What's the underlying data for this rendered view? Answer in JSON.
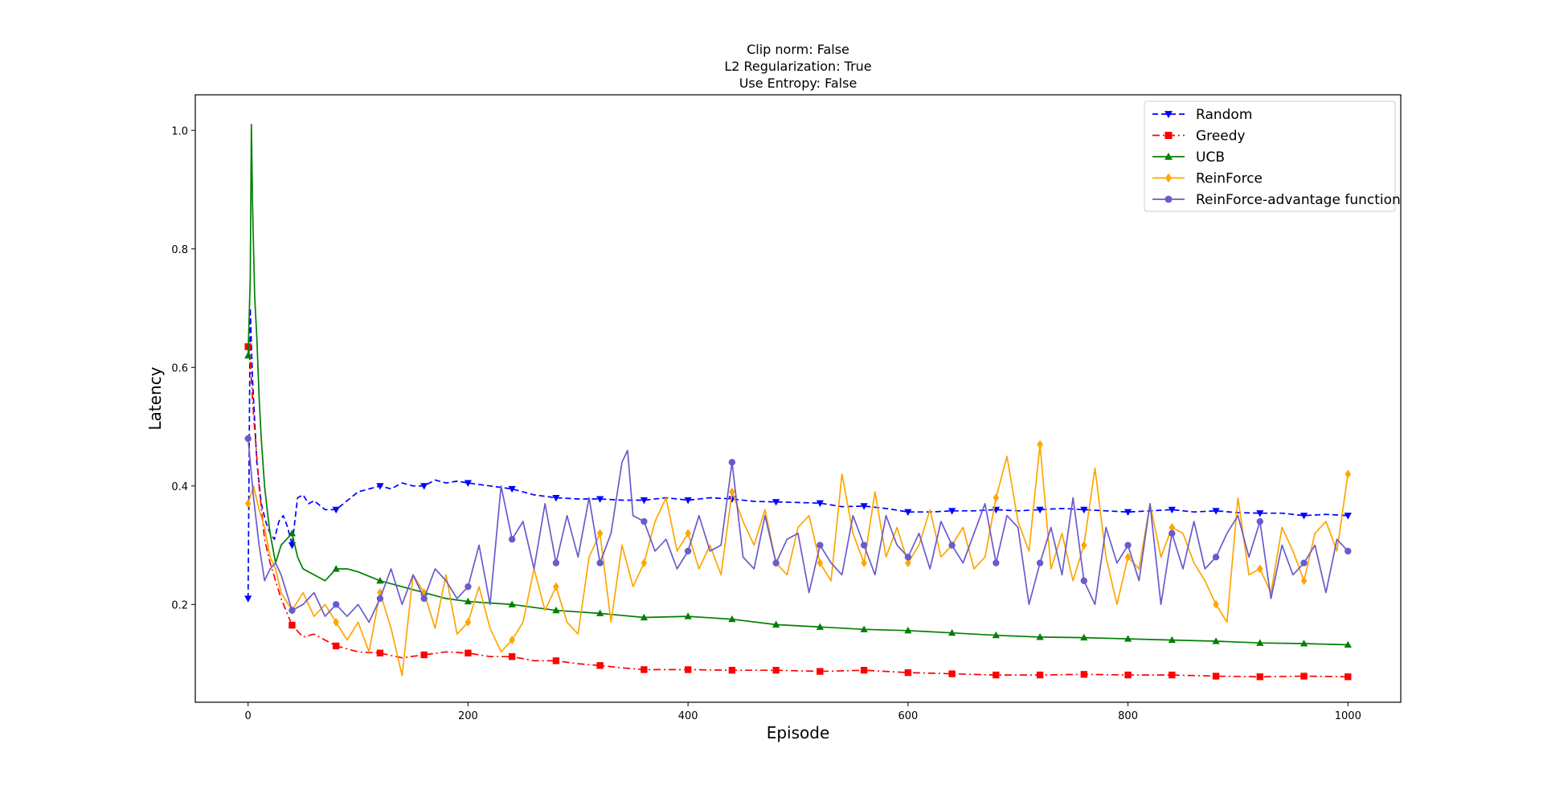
{
  "chart_data": {
    "type": "line",
    "title_lines": [
      "Clip norm: False",
      "L2 Regularization: True",
      "Use Entropy: False"
    ],
    "xlabel": "Episode",
    "ylabel": "Latency",
    "xlim": [
      -48,
      1048
    ],
    "ylim": [
      0.035,
      1.06
    ],
    "xticks": [
      0,
      200,
      400,
      600,
      800,
      1000
    ],
    "xtick_labels": [
      "0",
      "200",
      "400",
      "600",
      "800",
      "1000"
    ],
    "yticks": [
      0.2,
      0.4,
      0.6,
      0.8,
      1.0
    ],
    "ytick_labels": [
      "0.2",
      "0.4",
      "0.6",
      "0.8",
      "1.0"
    ],
    "grid": false,
    "legend_position": "top-right",
    "series": [
      {
        "name": "Random",
        "color": "#0000ff",
        "marker": "triangle-down",
        "line_style": "dashed",
        "x": [
          0,
          2,
          4,
          8,
          12,
          16,
          20,
          24,
          28,
          32,
          36,
          40,
          45,
          50,
          55,
          60,
          70,
          80,
          90,
          100,
          110,
          120,
          130,
          140,
          150,
          160,
          170,
          180,
          190,
          200,
          220,
          240,
          260,
          280,
          300,
          320,
          340,
          360,
          380,
          400,
          420,
          440,
          460,
          480,
          500,
          520,
          540,
          560,
          580,
          600,
          620,
          640,
          660,
          680,
          700,
          720,
          740,
          760,
          780,
          800,
          820,
          840,
          860,
          880,
          900,
          920,
          940,
          960,
          980,
          1000
        ],
        "y": [
          0.21,
          0.7,
          0.58,
          0.44,
          0.37,
          0.34,
          0.32,
          0.31,
          0.34,
          0.35,
          0.33,
          0.3,
          0.38,
          0.385,
          0.37,
          0.375,
          0.36,
          0.36,
          0.375,
          0.39,
          0.395,
          0.4,
          0.395,
          0.405,
          0.4,
          0.4,
          0.41,
          0.405,
          0.408,
          0.405,
          0.4,
          0.395,
          0.385,
          0.38,
          0.378,
          0.378,
          0.376,
          0.376,
          0.38,
          0.376,
          0.38,
          0.378,
          0.374,
          0.373,
          0.372,
          0.371,
          0.365,
          0.366,
          0.362,
          0.356,
          0.356,
          0.358,
          0.358,
          0.36,
          0.358,
          0.36,
          0.362,
          0.36,
          0.358,
          0.356,
          0.358,
          0.36,
          0.356,
          0.358,
          0.355,
          0.354,
          0.354,
          0.35,
          0.352,
          0.35
        ]
      },
      {
        "name": "Greedy",
        "color": "#ff0000",
        "marker": "square",
        "line_style": "dashdot",
        "x": [
          0,
          2,
          5,
          10,
          15,
          20,
          25,
          30,
          40,
          50,
          60,
          70,
          80,
          90,
          100,
          120,
          140,
          160,
          180,
          200,
          220,
          240,
          260,
          280,
          300,
          320,
          340,
          360,
          380,
          400,
          440,
          480,
          520,
          560,
          600,
          640,
          680,
          720,
          760,
          800,
          840,
          880,
          920,
          960,
          1000
        ],
        "y": [
          0.635,
          0.61,
          0.52,
          0.4,
          0.31,
          0.27,
          0.24,
          0.21,
          0.165,
          0.145,
          0.15,
          0.14,
          0.13,
          0.125,
          0.12,
          0.118,
          0.11,
          0.115,
          0.12,
          0.118,
          0.112,
          0.112,
          0.105,
          0.105,
          0.1,
          0.097,
          0.093,
          0.09,
          0.09,
          0.09,
          0.089,
          0.089,
          0.087,
          0.089,
          0.085,
          0.083,
          0.081,
          0.081,
          0.082,
          0.081,
          0.081,
          0.079,
          0.078,
          0.079,
          0.078
        ]
      },
      {
        "name": "UCB",
        "color": "#008000",
        "marker": "triangle-up",
        "line_style": "solid",
        "x": [
          0,
          2,
          3,
          4,
          5,
          6,
          8,
          10,
          12,
          15,
          18,
          20,
          25,
          30,
          35,
          40,
          45,
          50,
          60,
          70,
          80,
          90,
          100,
          120,
          140,
          160,
          180,
          200,
          240,
          280,
          320,
          360,
          400,
          440,
          480,
          520,
          560,
          600,
          640,
          680,
          720,
          760,
          800,
          840,
          880,
          920,
          960,
          1000
        ],
        "y": [
          0.62,
          0.75,
          1.01,
          0.88,
          0.8,
          0.72,
          0.65,
          0.55,
          0.48,
          0.4,
          0.35,
          0.32,
          0.27,
          0.3,
          0.31,
          0.32,
          0.28,
          0.26,
          0.25,
          0.24,
          0.26,
          0.26,
          0.255,
          0.24,
          0.23,
          0.22,
          0.21,
          0.205,
          0.2,
          0.19,
          0.185,
          0.178,
          0.18,
          0.175,
          0.166,
          0.162,
          0.158,
          0.156,
          0.152,
          0.148,
          0.145,
          0.144,
          0.142,
          0.14,
          0.138,
          0.135,
          0.134,
          0.132
        ]
      },
      {
        "name": "ReinForce",
        "color": "#ffa500",
        "marker": "diamond",
        "line_style": "solid",
        "x": [
          0,
          5,
          10,
          15,
          20,
          25,
          30,
          40,
          50,
          60,
          70,
          80,
          90,
          100,
          110,
          120,
          130,
          140,
          150,
          160,
          170,
          180,
          190,
          200,
          210,
          220,
          230,
          240,
          250,
          260,
          270,
          280,
          290,
          300,
          310,
          320,
          330,
          340,
          350,
          360,
          370,
          380,
          390,
          400,
          410,
          420,
          430,
          440,
          450,
          460,
          470,
          480,
          490,
          500,
          510,
          520,
          530,
          540,
          550,
          560,
          570,
          580,
          590,
          600,
          610,
          620,
          630,
          640,
          650,
          660,
          670,
          680,
          690,
          700,
          710,
          720,
          730,
          740,
          750,
          760,
          770,
          780,
          790,
          800,
          810,
          820,
          830,
          840,
          850,
          860,
          870,
          880,
          890,
          900,
          910,
          920,
          930,
          940,
          950,
          960,
          970,
          980,
          990,
          1000
        ],
        "y": [
          0.37,
          0.4,
          0.36,
          0.33,
          0.28,
          0.26,
          0.22,
          0.19,
          0.22,
          0.18,
          0.2,
          0.17,
          0.14,
          0.17,
          0.12,
          0.22,
          0.16,
          0.08,
          0.25,
          0.22,
          0.16,
          0.25,
          0.15,
          0.17,
          0.23,
          0.16,
          0.12,
          0.14,
          0.17,
          0.26,
          0.19,
          0.23,
          0.17,
          0.15,
          0.28,
          0.32,
          0.17,
          0.3,
          0.23,
          0.27,
          0.34,
          0.38,
          0.29,
          0.32,
          0.26,
          0.3,
          0.25,
          0.39,
          0.34,
          0.3,
          0.36,
          0.27,
          0.25,
          0.33,
          0.35,
          0.27,
          0.24,
          0.42,
          0.32,
          0.27,
          0.39,
          0.28,
          0.33,
          0.27,
          0.3,
          0.36,
          0.28,
          0.3,
          0.33,
          0.26,
          0.28,
          0.38,
          0.45,
          0.34,
          0.29,
          0.47,
          0.26,
          0.32,
          0.24,
          0.3,
          0.43,
          0.28,
          0.2,
          0.28,
          0.26,
          0.37,
          0.28,
          0.33,
          0.32,
          0.27,
          0.24,
          0.2,
          0.17,
          0.38,
          0.25,
          0.26,
          0.22,
          0.33,
          0.29,
          0.24,
          0.32,
          0.34,
          0.29,
          0.42
        ]
      },
      {
        "name": "ReinForce-advantage function",
        "color": "#6a5acd",
        "marker": "circle",
        "line_style": "solid",
        "x": [
          0,
          5,
          10,
          15,
          20,
          25,
          30,
          40,
          50,
          60,
          70,
          80,
          90,
          100,
          110,
          120,
          130,
          140,
          150,
          160,
          170,
          180,
          190,
          200,
          210,
          220,
          230,
          240,
          250,
          260,
          270,
          280,
          290,
          300,
          310,
          320,
          330,
          340,
          345,
          350,
          360,
          370,
          380,
          390,
          400,
          410,
          420,
          430,
          440,
          450,
          460,
          470,
          480,
          490,
          500,
          510,
          520,
          530,
          540,
          550,
          560,
          570,
          580,
          590,
          600,
          610,
          620,
          630,
          640,
          650,
          660,
          670,
          680,
          690,
          700,
          710,
          720,
          730,
          740,
          750,
          760,
          770,
          780,
          790,
          800,
          810,
          820,
          830,
          840,
          850,
          860,
          870,
          880,
          890,
          900,
          910,
          920,
          930,
          940,
          950,
          960,
          970,
          980,
          990,
          1000
        ],
        "y": [
          0.48,
          0.38,
          0.3,
          0.24,
          0.26,
          0.27,
          0.25,
          0.19,
          0.2,
          0.22,
          0.18,
          0.2,
          0.18,
          0.2,
          0.17,
          0.21,
          0.26,
          0.2,
          0.25,
          0.21,
          0.26,
          0.24,
          0.21,
          0.23,
          0.3,
          0.2,
          0.4,
          0.31,
          0.34,
          0.26,
          0.37,
          0.27,
          0.35,
          0.28,
          0.38,
          0.27,
          0.32,
          0.44,
          0.46,
          0.35,
          0.34,
          0.29,
          0.31,
          0.26,
          0.29,
          0.35,
          0.29,
          0.3,
          0.44,
          0.28,
          0.26,
          0.35,
          0.27,
          0.31,
          0.32,
          0.22,
          0.3,
          0.27,
          0.25,
          0.35,
          0.3,
          0.25,
          0.35,
          0.3,
          0.28,
          0.32,
          0.26,
          0.34,
          0.3,
          0.27,
          0.32,
          0.37,
          0.27,
          0.35,
          0.33,
          0.2,
          0.27,
          0.33,
          0.25,
          0.38,
          0.24,
          0.2,
          0.33,
          0.27,
          0.3,
          0.24,
          0.37,
          0.2,
          0.32,
          0.26,
          0.34,
          0.26,
          0.28,
          0.32,
          0.35,
          0.28,
          0.34,
          0.21,
          0.3,
          0.25,
          0.27,
          0.3,
          0.22,
          0.31,
          0.29
        ]
      }
    ]
  }
}
